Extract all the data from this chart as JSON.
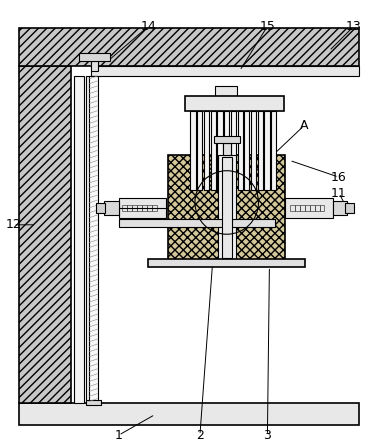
{
  "bg_color": "#ffffff",
  "lc": "#000000",
  "hatch_wall": "////",
  "hatch_block": "xxxx",
  "wall_fc": "#c8c8c8",
  "beam_fc": "#c8c8c8",
  "plain_fc": "#f0f0f0",
  "block_fc": "#d4c89a",
  "base_fc": "#e8e8e8",
  "label_fs": 9
}
